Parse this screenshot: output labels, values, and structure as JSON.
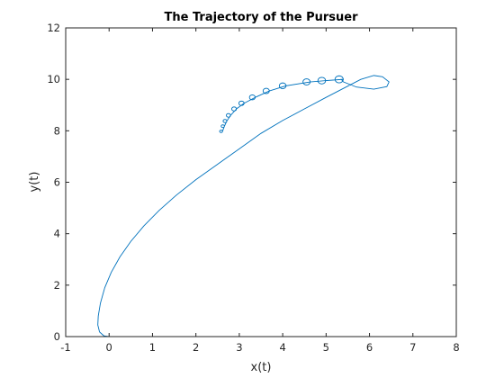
{
  "chart_data": {
    "type": "line",
    "title": "The Trajectory of the Pursuer",
    "xlabel": "x(t)",
    "ylabel": "y(t)",
    "xlim": [
      -1,
      8
    ],
    "ylim": [
      0,
      12
    ],
    "xticks": [
      -1,
      0,
      1,
      2,
      3,
      4,
      5,
      6,
      7,
      8
    ],
    "yticks": [
      0,
      2,
      4,
      6,
      8,
      10,
      12
    ],
    "grid": false,
    "legend": "none",
    "series": [
      {
        "color": "#0072BD",
        "start": [
          0.0,
          0.0
        ],
        "curve": [
          [
            0.0,
            0.0
          ],
          [
            -0.12,
            0.03
          ],
          [
            -0.22,
            0.18
          ],
          [
            -0.26,
            0.45
          ],
          [
            -0.25,
            0.8
          ],
          [
            -0.2,
            1.3
          ],
          [
            -0.1,
            1.9
          ],
          [
            0.05,
            2.5
          ],
          [
            0.25,
            3.1
          ],
          [
            0.5,
            3.7
          ],
          [
            0.8,
            4.3
          ],
          [
            1.15,
            4.9
          ],
          [
            1.55,
            5.5
          ],
          [
            2.0,
            6.1
          ],
          [
            2.5,
            6.7
          ],
          [
            3.0,
            7.3
          ],
          [
            3.5,
            7.9
          ],
          [
            4.0,
            8.4
          ],
          [
            4.5,
            8.85
          ],
          [
            5.0,
            9.3
          ],
          [
            5.4,
            9.65
          ],
          [
            5.8,
            10.0
          ],
          [
            6.1,
            10.15
          ],
          [
            6.3,
            10.1
          ],
          [
            6.45,
            9.9
          ],
          [
            6.4,
            9.72
          ],
          [
            6.1,
            9.62
          ],
          [
            5.7,
            9.7
          ],
          [
            5.4,
            9.9
          ],
          [
            5.35,
            10.0
          ]
        ],
        "loops": [
          {
            "x": 5.3,
            "y": 10.0
          },
          {
            "x": 4.9,
            "y": 9.95
          },
          {
            "x": 4.55,
            "y": 9.9
          },
          {
            "x": 4.0,
            "y": 9.75
          },
          {
            "x": 3.62,
            "y": 9.55
          },
          {
            "x": 3.3,
            "y": 9.3
          },
          {
            "x": 3.05,
            "y": 9.07
          },
          {
            "x": 2.88,
            "y": 8.85
          },
          {
            "x": 2.75,
            "y": 8.6
          },
          {
            "x": 2.67,
            "y": 8.38
          },
          {
            "x": 2.62,
            "y": 8.18
          },
          {
            "x": 2.58,
            "y": 7.98
          }
        ]
      }
    ]
  }
}
